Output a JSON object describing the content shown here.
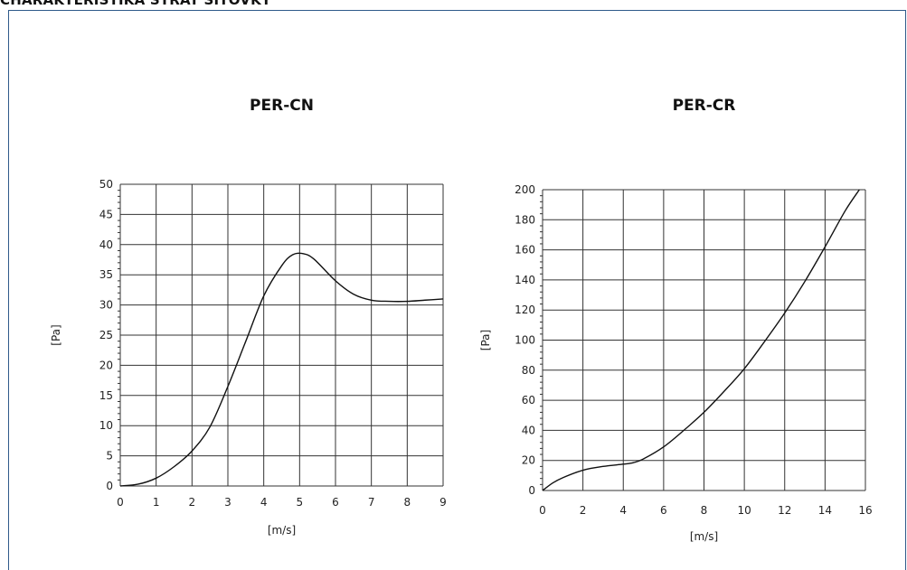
{
  "page": {
    "title": "CHARAKTERISTIKA STRAT SIŤOVKY",
    "frame_color": "#2f5a8a"
  },
  "chart_data": [
    {
      "type": "line",
      "title": "PER-CN",
      "xlabel": "[m/s]",
      "ylabel": "[Pa]",
      "xlim": [
        0,
        9
      ],
      "ylim": [
        0,
        50
      ],
      "xticks": [
        0,
        1,
        2,
        3,
        4,
        5,
        6,
        7,
        8,
        9
      ],
      "yticks": [
        0,
        5,
        10,
        15,
        20,
        25,
        30,
        35,
        40,
        45,
        50
      ],
      "grid": true,
      "series": [
        {
          "x": [
            0,
            0.5,
            1,
            1.5,
            2,
            2.5,
            3,
            3.5,
            4,
            4.5,
            4.8,
            5.1,
            5.4,
            6,
            6.5,
            7,
            7.5,
            8,
            8.5,
            9
          ],
          "y": [
            0,
            0.3,
            1.3,
            3.2,
            5.8,
            9.8,
            16.5,
            24,
            31.5,
            36.5,
            38.3,
            38.5,
            37.6,
            34,
            31.8,
            30.8,
            30.6,
            30.6,
            30.8,
            31
          ]
        }
      ]
    },
    {
      "type": "line",
      "title": "PER-CR",
      "xlabel": "[m/s]",
      "ylabel": "[Pa]",
      "xlim": [
        0,
        16
      ],
      "ylim": [
        0,
        200
      ],
      "xticks": [
        0,
        2,
        4,
        6,
        8,
        10,
        12,
        14,
        16
      ],
      "yticks": [
        0,
        20,
        40,
        60,
        80,
        100,
        120,
        140,
        160,
        180,
        200
      ],
      "grid": true,
      "series": [
        {
          "x": [
            0,
            0.5,
            1,
            2,
            3,
            4,
            4.5,
            5,
            6,
            7,
            8,
            9,
            10,
            11,
            12,
            13,
            14,
            15,
            15.7
          ],
          "y": [
            0,
            5,
            8.5,
            13.5,
            16,
            17.5,
            18.5,
            21,
            29,
            40,
            52,
            66,
            81,
            99,
            118,
            139,
            162,
            186,
            200
          ]
        }
      ]
    }
  ]
}
